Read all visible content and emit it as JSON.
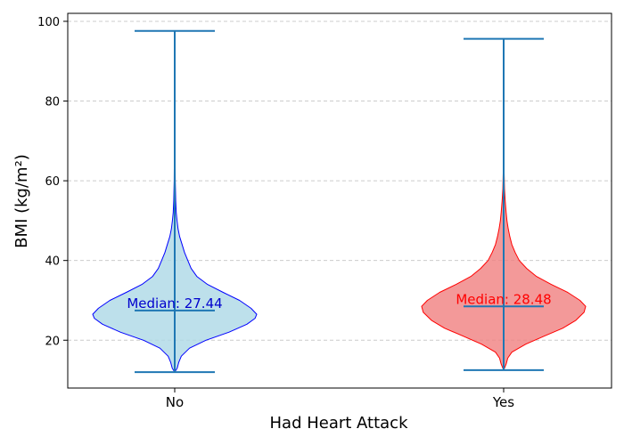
{
  "chart_data": {
    "type": "violin",
    "title": "",
    "xlabel": "Had Heart Attack",
    "ylabel": "BMI (kg/m²)",
    "categories": [
      "No",
      "Yes"
    ],
    "ylim": [
      8,
      102
    ],
    "yticks": [
      20,
      40,
      60,
      80,
      100
    ],
    "grid": {
      "y": true,
      "style": "dashed"
    },
    "series": [
      {
        "category": "No",
        "min": 12.0,
        "max": 97.6,
        "median": 27.44,
        "median_label": "Median: 27.44",
        "fill_color": "#add8e6",
        "edge_color": "#0000ff",
        "label_color": "#0000cd",
        "density_profile": [
          [
            12.0,
            0.0
          ],
          [
            13.0,
            0.03
          ],
          [
            14.5,
            0.05
          ],
          [
            16.0,
            0.08
          ],
          [
            18.0,
            0.18
          ],
          [
            20.0,
            0.38
          ],
          [
            22.0,
            0.66
          ],
          [
            24.0,
            0.88
          ],
          [
            25.5,
            0.98
          ],
          [
            26.5,
            1.0
          ],
          [
            28.0,
            0.93
          ],
          [
            30.0,
            0.79
          ],
          [
            32.0,
            0.59
          ],
          [
            34.0,
            0.4
          ],
          [
            36.0,
            0.27
          ],
          [
            38.0,
            0.2
          ],
          [
            40.0,
            0.16
          ],
          [
            42.0,
            0.12
          ],
          [
            44.0,
            0.09
          ],
          [
            46.0,
            0.06
          ],
          [
            48.0,
            0.04
          ],
          [
            50.0,
            0.028
          ],
          [
            52.0,
            0.018
          ],
          [
            55.0,
            0.012
          ],
          [
            60.0,
            0.006
          ],
          [
            70.0,
            0.003
          ],
          [
            80.0,
            0.002
          ],
          [
            90.0,
            0.0015
          ],
          [
            97.6,
            0.0
          ]
        ]
      },
      {
        "category": "Yes",
        "min": 12.5,
        "max": 95.6,
        "median": 28.48,
        "median_label": "Median: 28.48",
        "fill_color": "#f08080",
        "edge_color": "#ff0000",
        "label_color": "#ff0000",
        "density_profile": [
          [
            12.5,
            0.0
          ],
          [
            14.0,
            0.03
          ],
          [
            15.5,
            0.05
          ],
          [
            17.0,
            0.1
          ],
          [
            19.0,
            0.27
          ],
          [
            21.0,
            0.49
          ],
          [
            23.0,
            0.72
          ],
          [
            25.0,
            0.88
          ],
          [
            27.0,
            0.98
          ],
          [
            28.5,
            1.0
          ],
          [
            30.0,
            0.93
          ],
          [
            32.0,
            0.78
          ],
          [
            34.0,
            0.58
          ],
          [
            36.0,
            0.4
          ],
          [
            38.0,
            0.28
          ],
          [
            40.0,
            0.19
          ],
          [
            42.0,
            0.14
          ],
          [
            44.0,
            0.1
          ],
          [
            46.0,
            0.075
          ],
          [
            48.0,
            0.055
          ],
          [
            50.0,
            0.04
          ],
          [
            52.0,
            0.03
          ],
          [
            55.0,
            0.018
          ],
          [
            58.0,
            0.01
          ],
          [
            62.0,
            0.005
          ],
          [
            70.0,
            0.003
          ],
          [
            80.0,
            0.002
          ],
          [
            90.0,
            0.0015
          ],
          [
            95.6,
            0.0
          ]
        ]
      }
    ],
    "whisker_color": "#1f77b4"
  }
}
